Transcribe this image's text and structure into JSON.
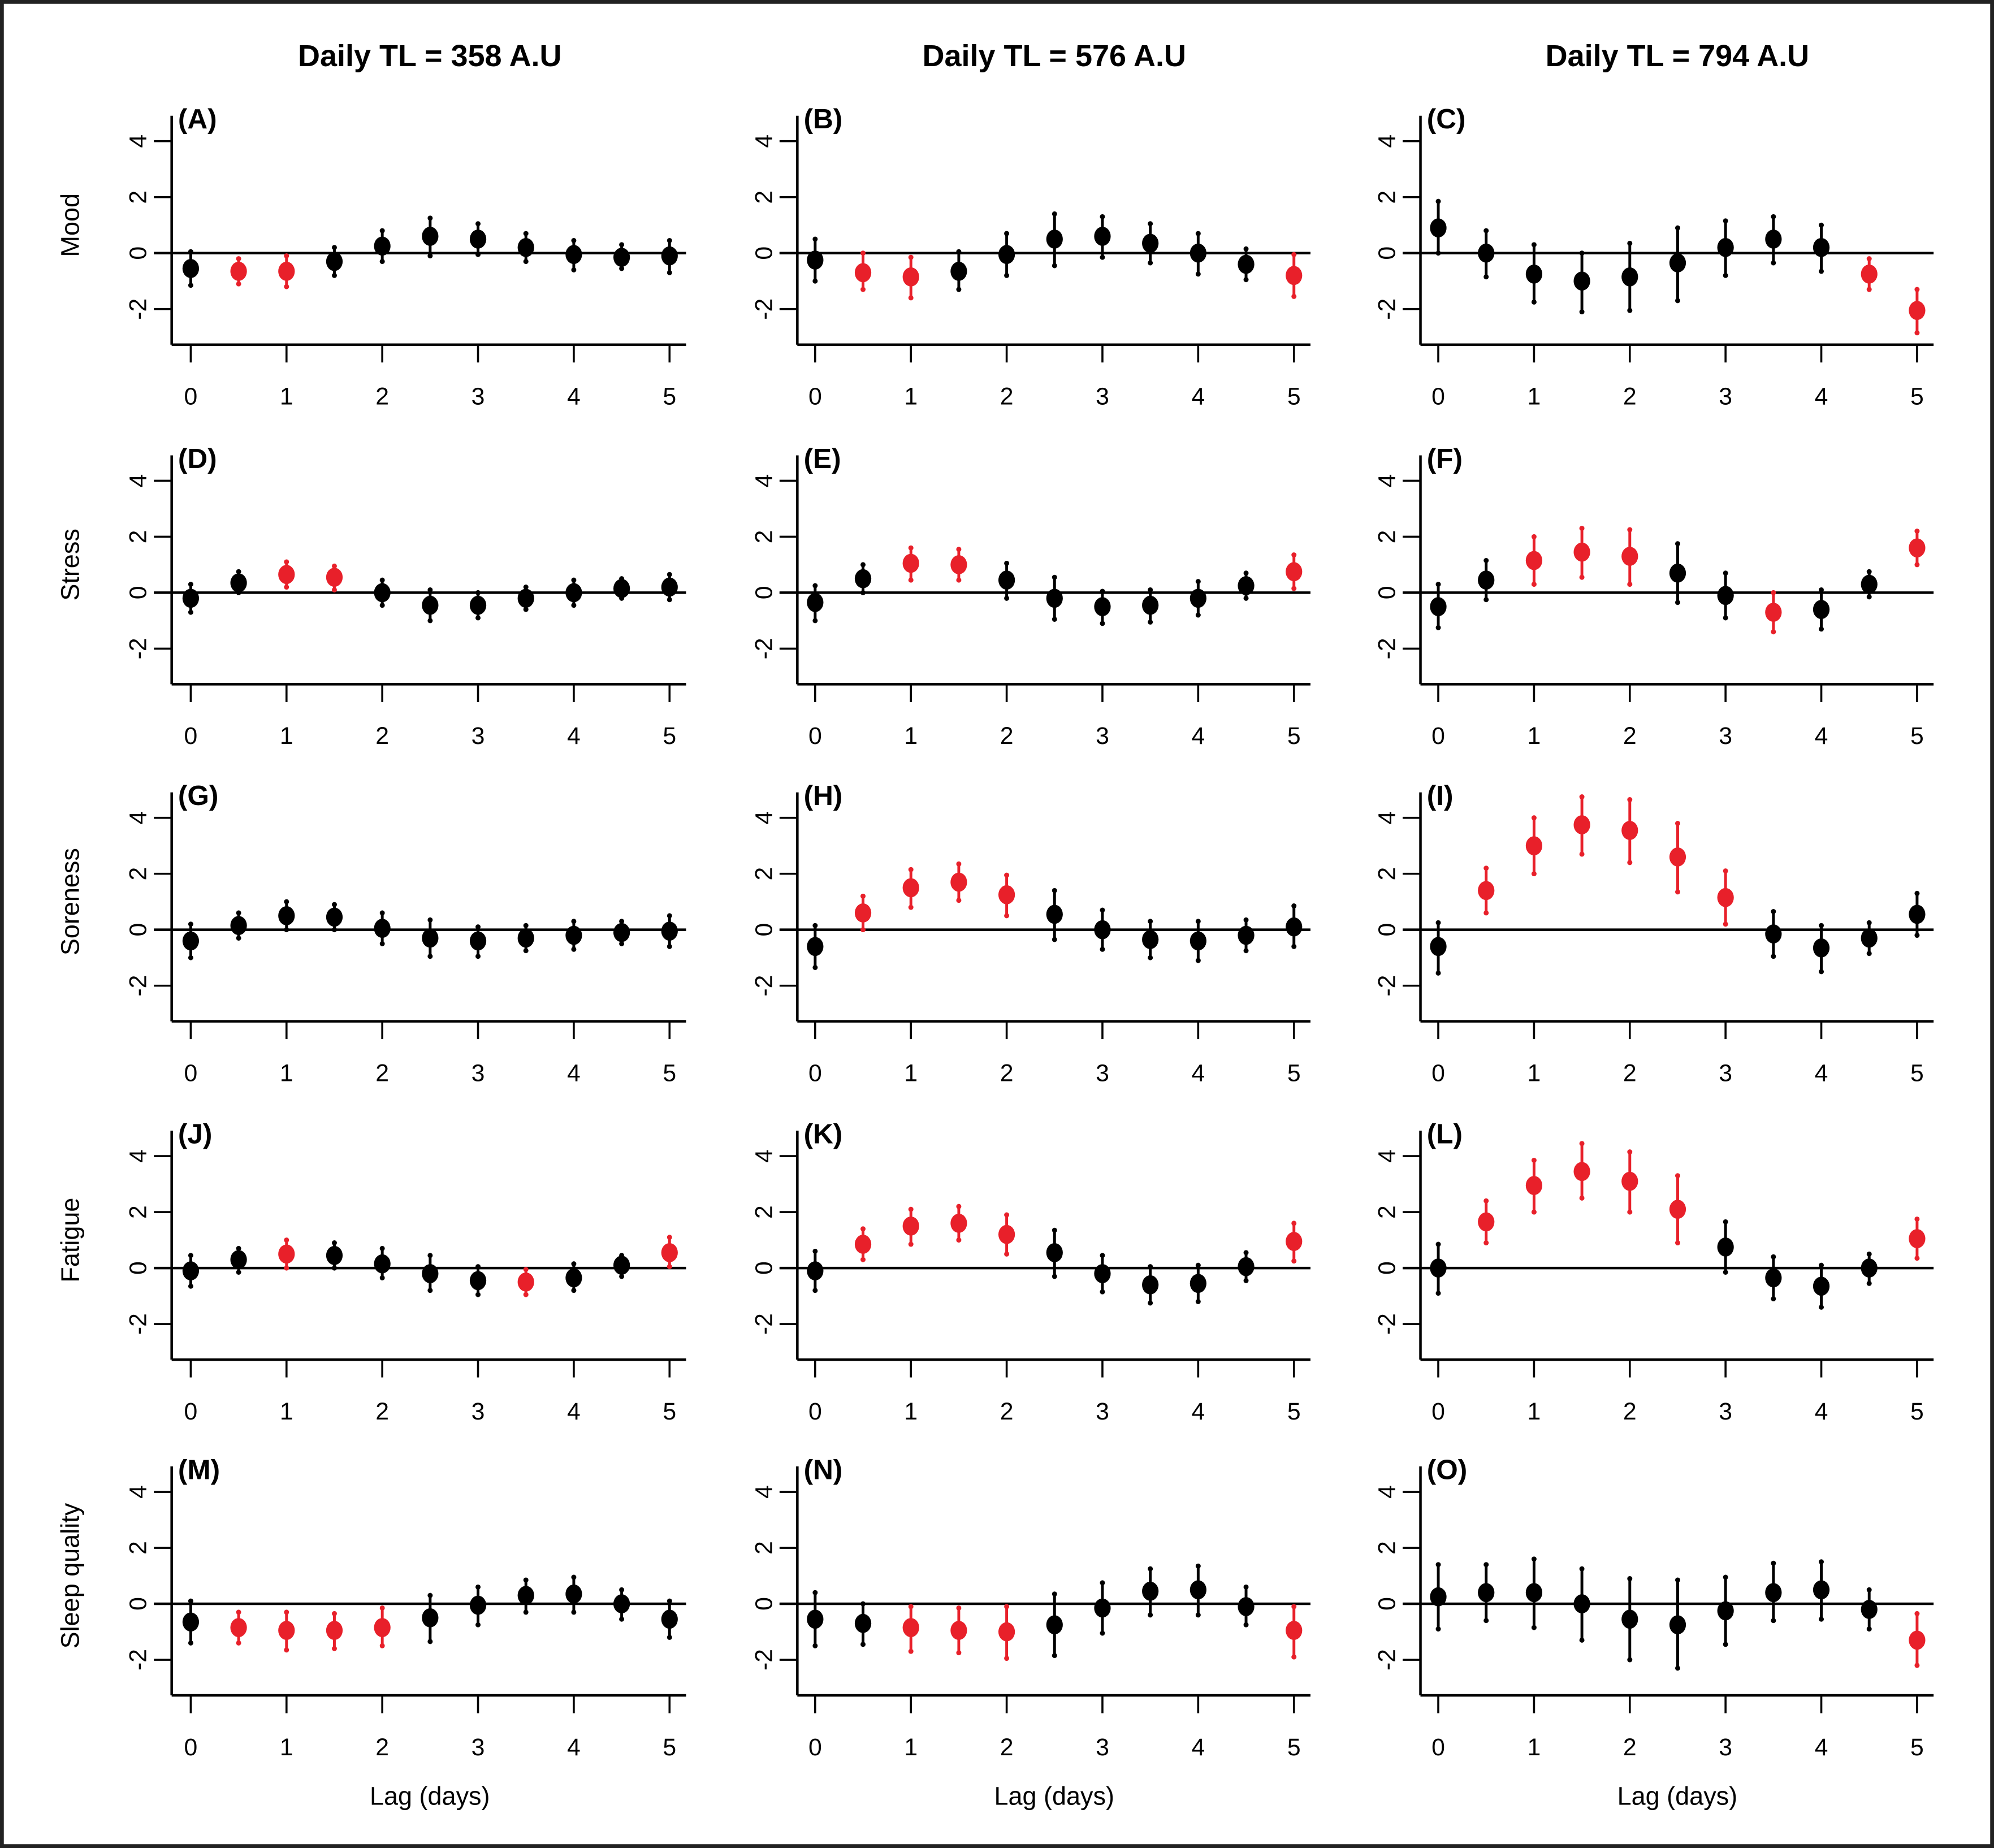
{
  "chart_data": {
    "type": "scatter",
    "description": "Lagged effects (point estimate with 95% CI error bars) of daily training load on wellness measures",
    "colors": {
      "significant": "#e8202a",
      "nonsignificant": "#000000"
    },
    "x": [
      0,
      0.5,
      1,
      1.5,
      2,
      2.5,
      3,
      3.5,
      4,
      4.5,
      5
    ],
    "x_ticks": [
      "0",
      "1",
      "2",
      "3",
      "4",
      "5"
    ],
    "y_ticks": [
      "-2",
      "0",
      "2",
      "4"
    ],
    "ylim": [
      -3.3,
      5
    ],
    "xlim": [
      -0.2,
      5.2
    ],
    "xlabel": "Lag (days)",
    "columns": [
      "Daily TL = 358 A.U",
      "Daily TL = 576 A.U",
      "Daily TL = 794 A.U"
    ],
    "rows": [
      "Mood",
      "Stress",
      "Soreness",
      "Fatigue",
      "Sleep quality"
    ],
    "panels": [
      {
        "label": "(A)",
        "row": 0,
        "col": 0,
        "y": [
          -0.55,
          -0.65,
          -0.65,
          -0.3,
          0.25,
          0.6,
          0.5,
          0.2,
          -0.05,
          -0.15,
          -0.1
        ],
        "lower": [
          -1.15,
          -1.1,
          -1.2,
          -0.8,
          -0.3,
          -0.1,
          -0.05,
          -0.3,
          -0.6,
          -0.55,
          -0.7
        ],
        "upper": [
          0.05,
          -0.2,
          -0.1,
          0.2,
          0.8,
          1.25,
          1.05,
          0.7,
          0.45,
          0.3,
          0.45
        ],
        "significant": [
          false,
          true,
          true,
          false,
          false,
          false,
          false,
          false,
          false,
          false,
          false
        ]
      },
      {
        "label": "(B)",
        "row": 0,
        "col": 1,
        "y": [
          -0.25,
          -0.7,
          -0.85,
          -0.65,
          -0.05,
          0.5,
          0.6,
          0.35,
          0.0,
          -0.4,
          -0.8
        ],
        "lower": [
          -1.0,
          -1.3,
          -1.6,
          -1.3,
          -0.8,
          -0.45,
          -0.15,
          -0.35,
          -0.75,
          -0.95,
          -1.55
        ],
        "upper": [
          0.5,
          0.0,
          -0.15,
          0.05,
          0.7,
          1.4,
          1.3,
          1.05,
          0.7,
          0.15,
          -0.05
        ],
        "significant": [
          false,
          true,
          true,
          false,
          false,
          false,
          false,
          false,
          false,
          false,
          true
        ]
      },
      {
        "label": "(C)",
        "row": 0,
        "col": 2,
        "y": [
          0.9,
          0.0,
          -0.75,
          -1.0,
          -0.85,
          -0.35,
          0.2,
          0.5,
          0.2,
          -0.75,
          -2.05
        ],
        "lower": [
          0.0,
          -0.85,
          -1.75,
          -2.1,
          -2.05,
          -1.7,
          -0.8,
          -0.35,
          -0.65,
          -1.3,
          -2.85
        ],
        "upper": [
          1.85,
          0.8,
          0.3,
          0.0,
          0.35,
          0.9,
          1.15,
          1.3,
          1.0,
          -0.2,
          -1.3
        ],
        "significant": [
          false,
          false,
          false,
          false,
          false,
          false,
          false,
          false,
          false,
          true,
          true
        ]
      },
      {
        "label": "(D)",
        "row": 1,
        "col": 0,
        "y": [
          -0.2,
          0.35,
          0.65,
          0.55,
          0.0,
          -0.45,
          -0.45,
          -0.2,
          0.0,
          0.15,
          0.2
        ],
        "lower": [
          -0.7,
          0.0,
          0.2,
          0.1,
          -0.45,
          -1.0,
          -0.9,
          -0.6,
          -0.45,
          -0.2,
          -0.25
        ],
        "upper": [
          0.3,
          0.75,
          1.1,
          0.95,
          0.45,
          0.1,
          0.0,
          0.2,
          0.45,
          0.5,
          0.65
        ],
        "significant": [
          false,
          false,
          true,
          true,
          false,
          false,
          false,
          false,
          false,
          false,
          false
        ]
      },
      {
        "label": "(E)",
        "row": 1,
        "col": 1,
        "y": [
          -0.35,
          0.5,
          1.05,
          1.0,
          0.45,
          -0.2,
          -0.5,
          -0.45,
          -0.2,
          0.25,
          0.75
        ],
        "lower": [
          -1.0,
          0.0,
          0.45,
          0.45,
          -0.2,
          -0.95,
          -1.1,
          -1.05,
          -0.8,
          -0.2,
          0.15
        ],
        "upper": [
          0.25,
          1.0,
          1.6,
          1.55,
          1.05,
          0.55,
          0.05,
          0.1,
          0.4,
          0.7,
          1.35
        ],
        "significant": [
          false,
          false,
          true,
          true,
          false,
          false,
          false,
          false,
          false,
          false,
          true
        ]
      },
      {
        "label": "(F)",
        "row": 1,
        "col": 2,
        "y": [
          -0.5,
          0.45,
          1.15,
          1.45,
          1.3,
          0.7,
          -0.1,
          -0.7,
          -0.6,
          0.3,
          1.6
        ],
        "lower": [
          -1.25,
          -0.25,
          0.3,
          0.55,
          0.3,
          -0.35,
          -0.9,
          -1.4,
          -1.3,
          -0.15,
          1.0
        ],
        "upper": [
          0.3,
          1.15,
          2.0,
          2.3,
          2.25,
          1.75,
          0.7,
          0.0,
          0.1,
          0.75,
          2.2
        ],
        "significant": [
          false,
          false,
          true,
          true,
          true,
          false,
          false,
          true,
          false,
          false,
          true
        ]
      },
      {
        "label": "(G)",
        "row": 2,
        "col": 0,
        "y": [
          -0.4,
          0.15,
          0.5,
          0.45,
          0.05,
          -0.3,
          -0.4,
          -0.3,
          -0.2,
          -0.1,
          -0.05
        ],
        "lower": [
          -1.0,
          -0.3,
          0.0,
          0.0,
          -0.5,
          -0.95,
          -0.95,
          -0.75,
          -0.7,
          -0.5,
          -0.6
        ],
        "upper": [
          0.2,
          0.6,
          1.0,
          0.9,
          0.6,
          0.35,
          0.1,
          0.15,
          0.3,
          0.3,
          0.5
        ],
        "significant": [
          false,
          false,
          false,
          false,
          false,
          false,
          false,
          false,
          false,
          false,
          false
        ]
      },
      {
        "label": "(H)",
        "row": 2,
        "col": 1,
        "y": [
          -0.6,
          0.6,
          1.5,
          1.7,
          1.25,
          0.55,
          0.0,
          -0.35,
          -0.4,
          -0.2,
          0.1
        ],
        "lower": [
          -1.35,
          0.0,
          0.8,
          1.05,
          0.5,
          -0.35,
          -0.7,
          -1.0,
          -1.1,
          -0.75,
          -0.6
        ],
        "upper": [
          0.15,
          1.2,
          2.15,
          2.35,
          1.95,
          1.4,
          0.7,
          0.3,
          0.3,
          0.35,
          0.85
        ],
        "significant": [
          false,
          true,
          true,
          true,
          true,
          false,
          false,
          false,
          false,
          false,
          false
        ]
      },
      {
        "label": "(I)",
        "row": 2,
        "col": 2,
        "y": [
          -0.6,
          1.4,
          3.0,
          3.75,
          3.55,
          2.6,
          1.15,
          -0.15,
          -0.65,
          -0.3,
          0.55
        ],
        "lower": [
          -1.55,
          0.6,
          2.0,
          2.7,
          2.4,
          1.35,
          0.2,
          -0.95,
          -1.5,
          -0.85,
          -0.2
        ],
        "upper": [
          0.25,
          2.2,
          4.0,
          4.75,
          4.65,
          3.8,
          2.1,
          0.65,
          0.15,
          0.25,
          1.3
        ],
        "significant": [
          false,
          true,
          true,
          true,
          true,
          true,
          true,
          false,
          false,
          false,
          false
        ]
      },
      {
        "label": "(J)",
        "row": 3,
        "col": 0,
        "y": [
          -0.1,
          0.3,
          0.5,
          0.45,
          0.15,
          -0.2,
          -0.45,
          -0.5,
          -0.35,
          0.1,
          0.55
        ],
        "lower": [
          -0.65,
          -0.15,
          0.0,
          0.0,
          -0.35,
          -0.8,
          -0.95,
          -0.95,
          -0.8,
          -0.3,
          0.05
        ],
        "upper": [
          0.45,
          0.7,
          1.0,
          0.9,
          0.7,
          0.45,
          0.05,
          -0.05,
          0.15,
          0.45,
          1.1
        ],
        "significant": [
          false,
          false,
          true,
          false,
          false,
          false,
          false,
          true,
          false,
          false,
          true
        ]
      },
      {
        "label": "(K)",
        "row": 3,
        "col": 1,
        "y": [
          -0.1,
          0.85,
          1.5,
          1.6,
          1.2,
          0.55,
          -0.2,
          -0.6,
          -0.55,
          0.05,
          0.95
        ],
        "lower": [
          -0.8,
          0.3,
          0.85,
          1.0,
          0.5,
          -0.3,
          -0.85,
          -1.25,
          -1.2,
          -0.45,
          0.25
        ],
        "upper": [
          0.6,
          1.4,
          2.1,
          2.2,
          1.9,
          1.35,
          0.45,
          0.05,
          0.1,
          0.55,
          1.6
        ],
        "significant": [
          false,
          true,
          true,
          true,
          true,
          false,
          false,
          false,
          false,
          false,
          true
        ]
      },
      {
        "label": "(L)",
        "row": 3,
        "col": 2,
        "y": [
          0.0,
          1.65,
          2.95,
          3.45,
          3.1,
          2.1,
          0.75,
          -0.35,
          -0.65,
          0.0,
          1.05
        ],
        "lower": [
          -0.9,
          0.9,
          2.0,
          2.5,
          2.0,
          0.9,
          -0.15,
          -1.1,
          -1.4,
          -0.55,
          0.35
        ],
        "upper": [
          0.85,
          2.4,
          3.85,
          4.45,
          4.15,
          3.3,
          1.65,
          0.4,
          0.1,
          0.5,
          1.75
        ],
        "significant": [
          false,
          true,
          true,
          true,
          true,
          true,
          false,
          false,
          false,
          false,
          true
        ]
      },
      {
        "label": "(M)",
        "row": 4,
        "col": 0,
        "y": [
          -0.65,
          -0.85,
          -0.95,
          -0.95,
          -0.85,
          -0.5,
          -0.05,
          0.3,
          0.35,
          0.0,
          -0.55
        ],
        "lower": [
          -1.4,
          -1.4,
          -1.65,
          -1.6,
          -1.5,
          -1.35,
          -0.75,
          -0.3,
          -0.3,
          -0.55,
          -1.2
        ],
        "upper": [
          0.1,
          -0.3,
          -0.3,
          -0.35,
          -0.15,
          0.3,
          0.6,
          0.85,
          0.95,
          0.5,
          0.1
        ],
        "significant": [
          false,
          true,
          true,
          true,
          true,
          false,
          false,
          false,
          false,
          false,
          false
        ]
      },
      {
        "label": "(N)",
        "row": 4,
        "col": 1,
        "y": [
          -0.55,
          -0.7,
          -0.85,
          -0.95,
          -1.0,
          -0.75,
          -0.15,
          0.45,
          0.5,
          -0.1,
          -0.95
        ],
        "lower": [
          -1.5,
          -1.45,
          -1.7,
          -1.75,
          -1.95,
          -1.85,
          -1.05,
          -0.4,
          -0.4,
          -0.75,
          -1.9
        ],
        "upper": [
          0.4,
          0.0,
          -0.1,
          -0.15,
          -0.1,
          0.35,
          0.75,
          1.25,
          1.35,
          0.6,
          -0.1
        ],
        "significant": [
          false,
          false,
          true,
          true,
          true,
          false,
          false,
          false,
          false,
          false,
          true
        ]
      },
      {
        "label": "(O)",
        "row": 4,
        "col": 2,
        "y": [
          0.25,
          0.4,
          0.4,
          0.0,
          -0.55,
          -0.75,
          -0.25,
          0.4,
          0.5,
          -0.2,
          -1.3
        ],
        "lower": [
          -0.9,
          -0.6,
          -0.85,
          -1.3,
          -2.0,
          -2.3,
          -1.45,
          -0.6,
          -0.55,
          -0.9,
          -2.2
        ],
        "upper": [
          1.4,
          1.4,
          1.6,
          1.25,
          0.9,
          0.85,
          0.95,
          1.45,
          1.5,
          0.5,
          -0.35
        ],
        "significant": [
          false,
          false,
          false,
          false,
          false,
          false,
          false,
          false,
          false,
          false,
          true
        ]
      }
    ]
  }
}
